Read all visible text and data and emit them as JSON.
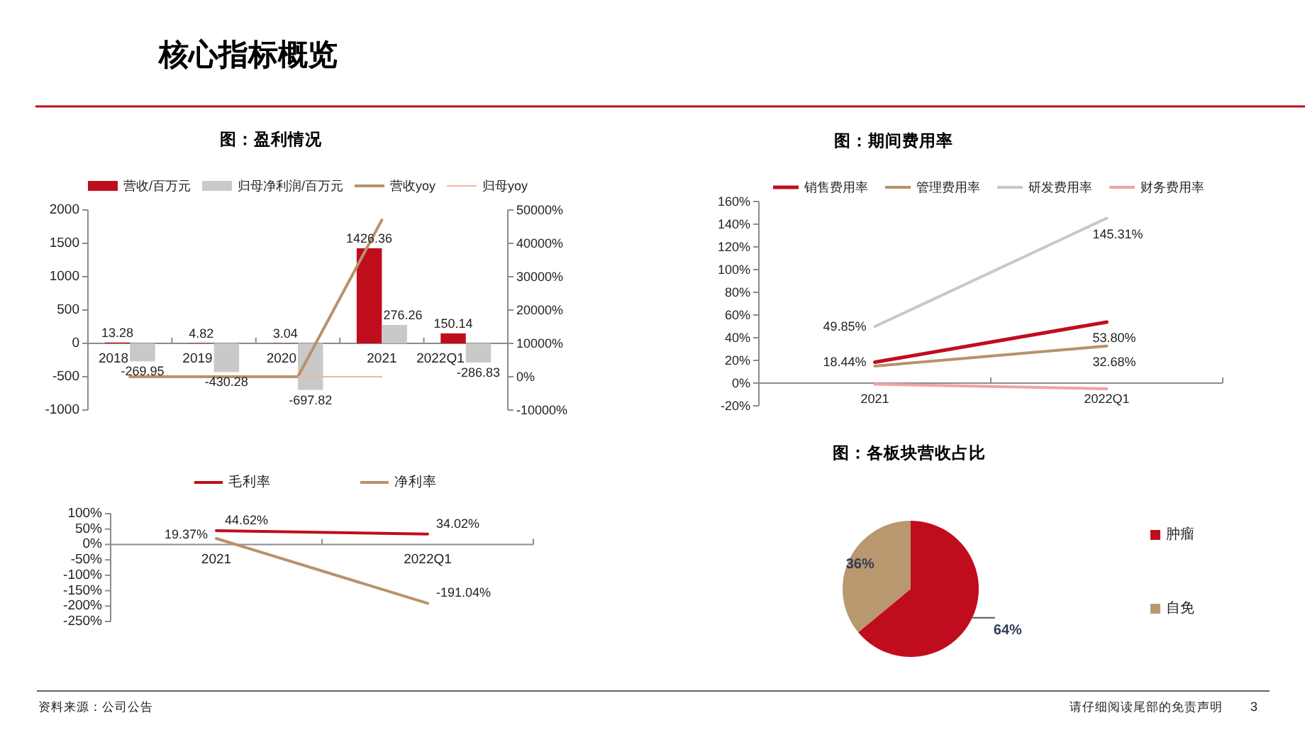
{
  "chart_data": [
    {
      "type": "other",
      "title": "核心指标概览",
      "annotations": [
        "资料来源：公司公告",
        "请仔细阅读尾部的免责声明",
        "3"
      ]
    },
    {
      "type": "bar",
      "title": "图：盈利情况",
      "categories": [
        "2018",
        "2019",
        "2020",
        "2021",
        "2022Q1"
      ],
      "series": [
        {
          "name": "营收/百万元",
          "color": "#c00d1e",
          "values": [
            13.28,
            4.82,
            3.04,
            1426.36,
            150.14
          ],
          "value_labels": [
            "13.28",
            "4.82",
            "3.04",
            "1426.36",
            "150.14"
          ]
        },
        {
          "name": "归母净利润/百万元",
          "color": "#c9c9c9",
          "values": [
            -269.95,
            -430.28,
            -697.82,
            276.26,
            -286.83
          ],
          "value_labels": [
            "-269.95",
            "-430.28",
            "-697.82",
            "276.26",
            "-286.83"
          ]
        },
        {
          "name": "营收yoy",
          "type": "line",
          "axis": "y2",
          "color": "#b8926a",
          "values": [
            0,
            0,
            0,
            47000,
            null
          ]
        },
        {
          "name": "归母yoy",
          "type": "line",
          "axis": "y2",
          "color": "#f2b4a6",
          "values": [
            null,
            null,
            0,
            0,
            null
          ]
        }
      ],
      "ylim": [
        -1000,
        2000
      ],
      "yticks": [
        -1000,
        -500,
        0,
        500,
        1000,
        1500,
        2000
      ],
      "y2lim": [
        -10000,
        50000
      ],
      "y2ticks": [
        {
          "value": -10000,
          "label": "-10000%"
        },
        {
          "value": 0,
          "label": "0%"
        },
        {
          "value": 10000,
          "label": "10000%"
        },
        {
          "value": 20000,
          "label": "20000%"
        },
        {
          "value": 30000,
          "label": "30000%"
        },
        {
          "value": 40000,
          "label": "40000%"
        },
        {
          "value": 50000,
          "label": "50000%"
        }
      ],
      "legend": "top"
    },
    {
      "type": "line",
      "title": "图：期间费用率",
      "categories": [
        "2021",
        "2022Q1"
      ],
      "series": [
        {
          "name": "销售费用率",
          "color": "#c00d1e",
          "values": [
            18.44,
            53.8
          ],
          "value_labels": [
            "18.44%",
            "53.80%"
          ]
        },
        {
          "name": "管理费用率",
          "color": "#b8926a",
          "values": [
            15,
            32.68
          ],
          "value_labels": [
            null,
            "32.68%"
          ]
        },
        {
          "name": "研发费用率",
          "color": "#c8c8c8",
          "values": [
            49.85,
            145.31
          ],
          "value_labels": [
            "49.85%",
            "145.31%"
          ]
        },
        {
          "name": "财务费用率",
          "color": "#f2a2a2",
          "values": [
            -1,
            -5
          ]
        }
      ],
      "ylim": [
        -20,
        160
      ],
      "yticks": [
        {
          "value": -20,
          "label": "-20%"
        },
        {
          "value": 0,
          "label": "0%"
        },
        {
          "value": 20,
          "label": "20%"
        },
        {
          "value": 40,
          "label": "40%"
        },
        {
          "value": 60,
          "label": "60%"
        },
        {
          "value": 80,
          "label": "80%"
        },
        {
          "value": 100,
          "label": "100%"
        },
        {
          "value": 120,
          "label": "120%"
        },
        {
          "value": 140,
          "label": "140%"
        },
        {
          "value": 160,
          "label": "160%"
        }
      ],
      "legend": "top"
    },
    {
      "type": "line",
      "categories": [
        "2021",
        "2022Q1"
      ],
      "series": [
        {
          "name": "毛利率",
          "color": "#c00d1e",
          "values": [
            44.62,
            34.02
          ],
          "value_labels": [
            "44.62%",
            "34.02%"
          ]
        },
        {
          "name": "净利率",
          "color": "#b8926a",
          "values": [
            19.37,
            -191.04
          ],
          "value_labels": [
            "19.37%",
            "-191.04%"
          ]
        }
      ],
      "ylim": [
        -250,
        100
      ],
      "yticks": [
        {
          "value": -250,
          "label": "-250%"
        },
        {
          "value": -200,
          "label": "-200%"
        },
        {
          "value": -150,
          "label": "-150%"
        },
        {
          "value": -100,
          "label": "-100%"
        },
        {
          "value": -50,
          "label": "-50%"
        },
        {
          "value": 0,
          "label": "0%"
        },
        {
          "value": 50,
          "label": "50%"
        },
        {
          "value": 100,
          "label": "100%"
        }
      ],
      "legend": "top"
    },
    {
      "type": "pie",
      "title": "图：各板块营收占比",
      "categories": [
        "肿瘤",
        "自免"
      ],
      "values": [
        64,
        36
      ],
      "colors": [
        "#c00d1e",
        "#b9976f"
      ],
      "value_labels": [
        "64%",
        "36%"
      ],
      "legend": "right"
    }
  ]
}
